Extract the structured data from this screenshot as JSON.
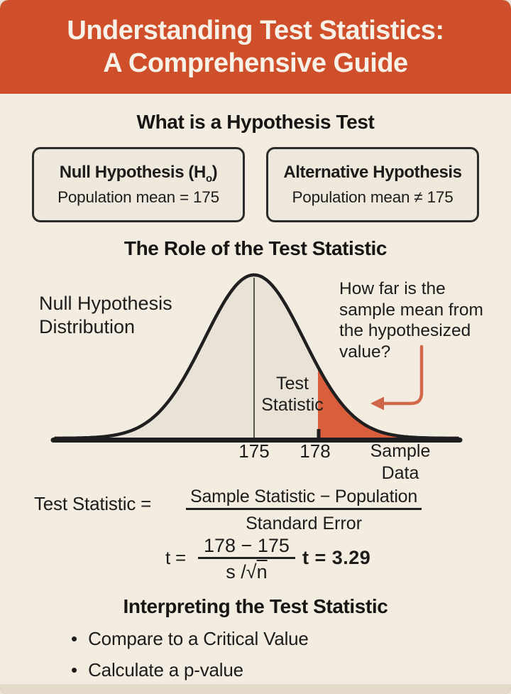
{
  "palette": {
    "page_bg": "#F3ECE1",
    "header_bg": "#CF4F2B",
    "header_text": "#F7F1E8",
    "ink": "#1D1C1A",
    "box_bg": "#EFE8DC",
    "box_border": "#2B2B2B"
  },
  "header": {
    "title_line1": "Understanding Test Statistics:",
    "title_line2": "A Comprehensive Guide"
  },
  "what_section": {
    "heading": "What is a Hypothesis Test",
    "boxes": [
      {
        "title_prefix": "Null Hypothesis (H",
        "title_sub": "o",
        "title_suffix": ")",
        "body": "Population mean = 175"
      },
      {
        "title_prefix": "Alternative Hypothesis",
        "title_sub": "",
        "title_suffix": "",
        "body": "Population mean ≠ 175"
      }
    ]
  },
  "role_section": {
    "heading": "The Role of the Test Statistic",
    "diagram": {
      "distribution_label": "Null Hypothesis\nDistribution",
      "question_label": "How far is the\nsample mean from\nthe hypothesized\nvalue?",
      "test_statistic_label": "Test\nStatistic",
      "x_ticks": [
        "175",
        "178"
      ],
      "x_axis_label": "Sample\nData",
      "colors": {
        "curve_fill": "#E8E2D7",
        "tail_fill": "#D85E3C",
        "outline": "#1F1F1F",
        "arrow": "#D2694A",
        "arrow_head": "#CE6647"
      }
    },
    "formula_general": {
      "lhs": "Test Statistic =",
      "numerator": "Sample Statistic − Population",
      "denominator": "Standard Error"
    },
    "formula_worked": {
      "lhs": "t =",
      "numerator": "178 − 175",
      "denominator_prefix": "s /",
      "radical_symbol": "√",
      "radicand": "n",
      "result": "t = 3.29"
    }
  },
  "interpret_section": {
    "heading": "Interpreting the Test Statistic",
    "bullet_glyph": "•",
    "bullets": [
      "Compare to a Critical Value",
      "Calculate a p-value"
    ]
  }
}
